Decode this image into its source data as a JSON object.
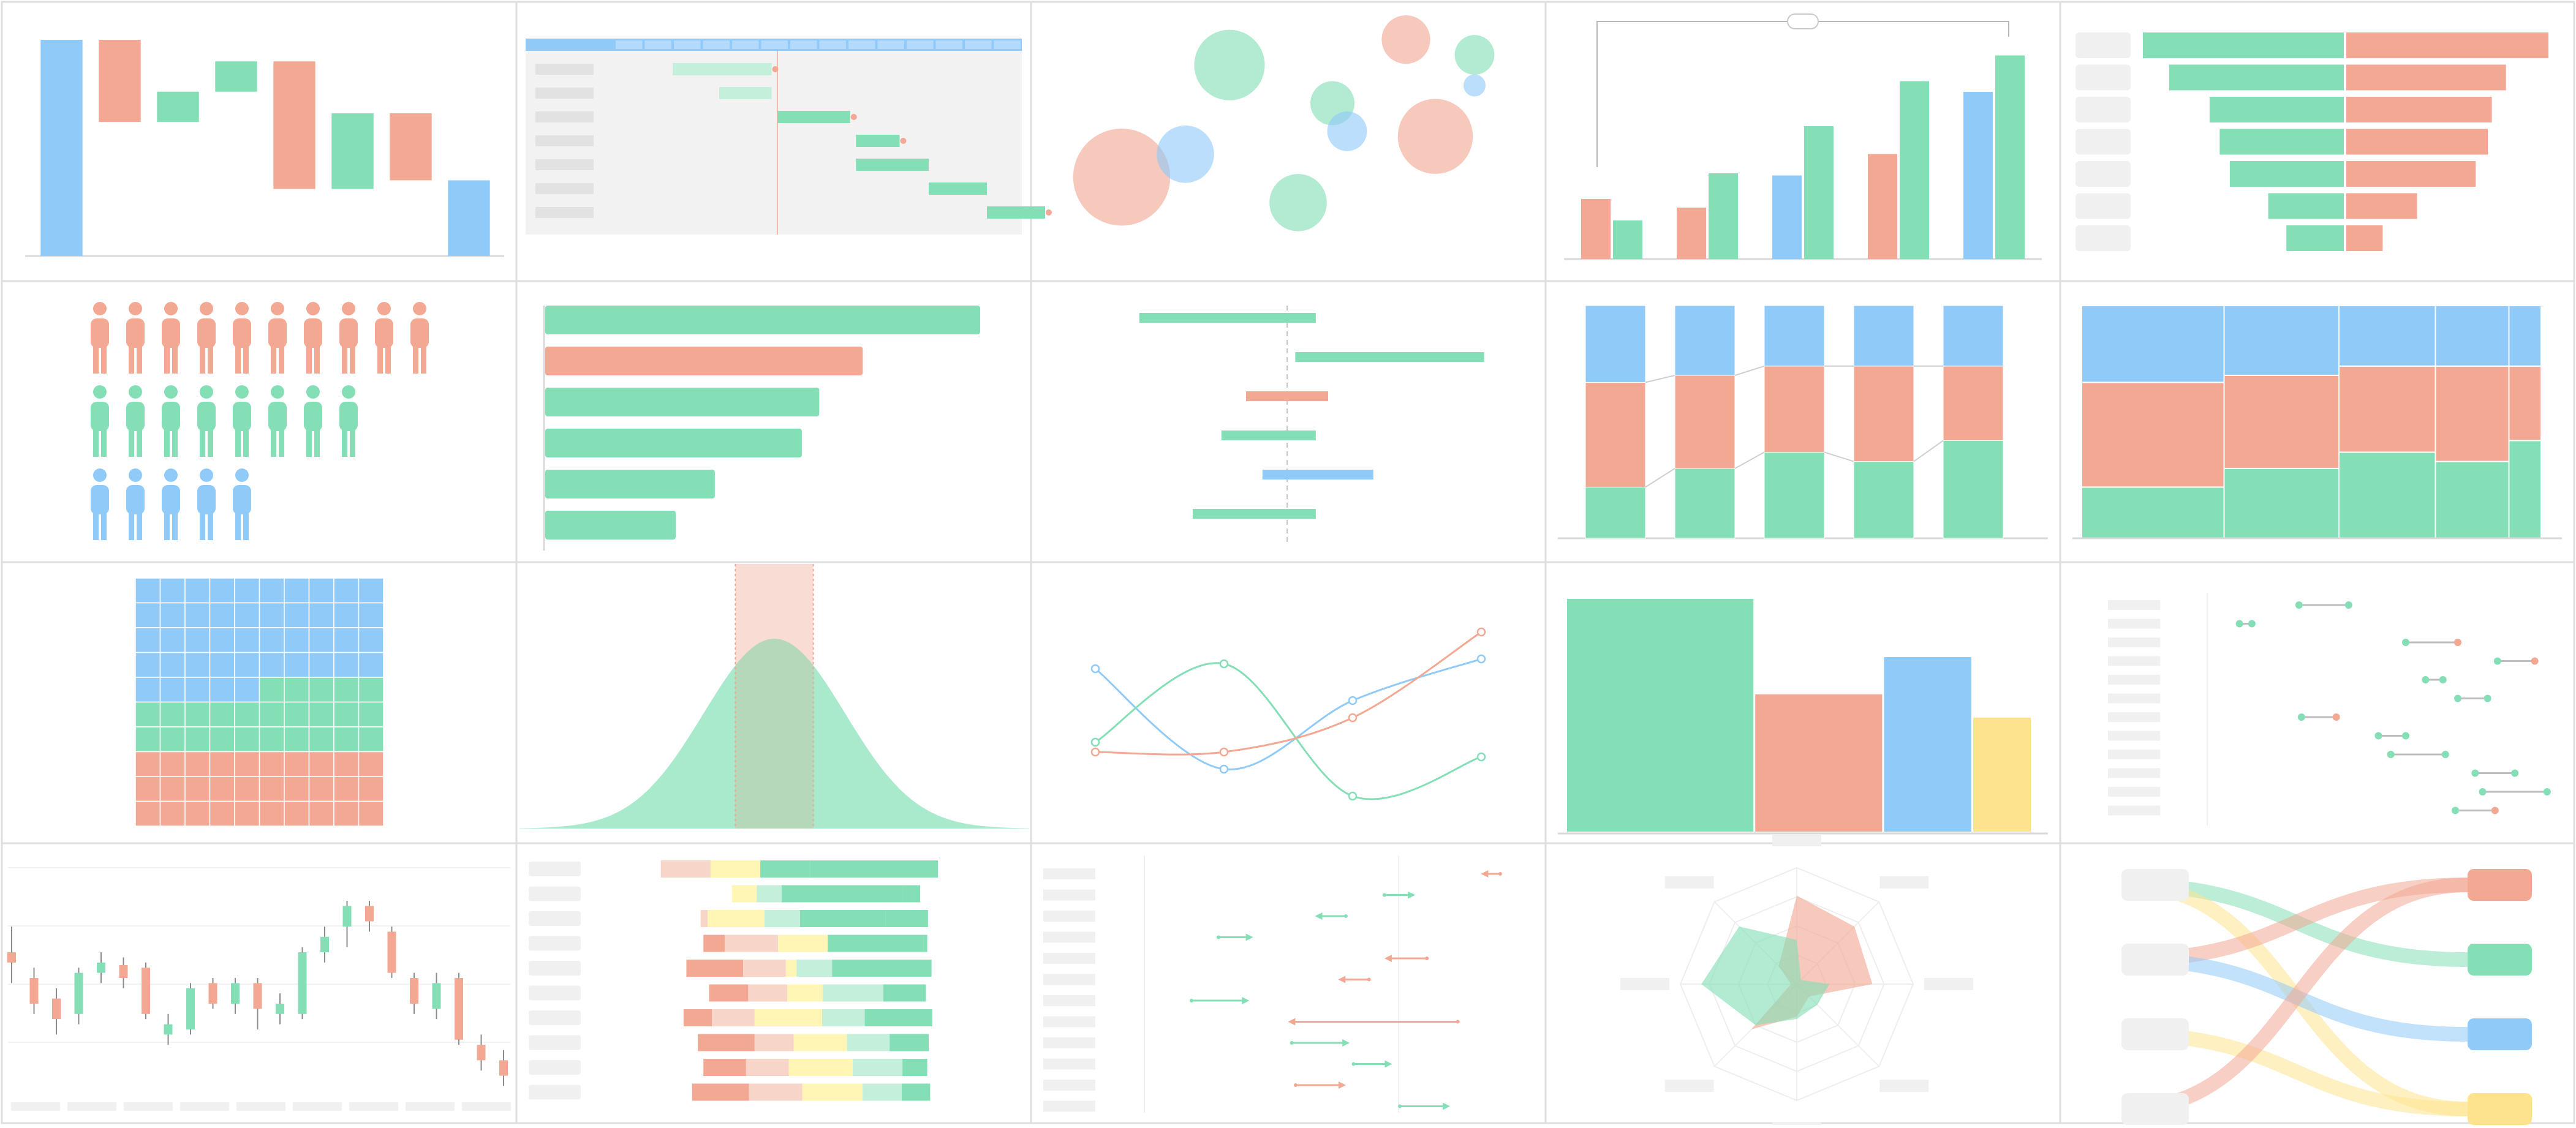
{
  "colors": {
    "blue": "#90caf9",
    "red": "#f2a893",
    "green": "#84dfb6",
    "yellow": "#fde38e",
    "grey": "#ececec",
    "panel_bg": "#ffffff",
    "panel_border": "#dedede",
    "axis": "#d9d9d9",
    "light_red": "#f7d5c9",
    "light_green": "#c3efdb",
    "light_yellow": "#fff6b6"
  },
  "chart_data": [
    {
      "type": "bar",
      "subtype": "waterfall",
      "grid_cell": [
        0,
        0
      ],
      "bars": [
        {
          "start": 0,
          "end": 100,
          "color": "blue"
        },
        {
          "start": 62,
          "end": 100,
          "color": "red"
        },
        {
          "start": 62,
          "end": 76,
          "color": "green"
        },
        {
          "start": 76,
          "end": 90,
          "color": "green"
        },
        {
          "start": 31,
          "end": 90,
          "color": "red"
        },
        {
          "start": 31,
          "end": 66,
          "color": "green"
        },
        {
          "start": 35,
          "end": 66,
          "color": "red"
        },
        {
          "start": 0,
          "end": 35,
          "color": "blue"
        }
      ]
    },
    {
      "type": "bar",
      "subtype": "gantt",
      "grid_cell": [
        0,
        1
      ],
      "columns": 14,
      "today": 5.6,
      "tasks": [
        {
          "start": 2.0,
          "end": 5.4,
          "status": "planned",
          "milestone": true
        },
        {
          "start": 3.6,
          "end": 5.4,
          "status": "planned",
          "milestone": false
        },
        {
          "start": 5.6,
          "end": 8.1,
          "status": "active",
          "milestone": true
        },
        {
          "start": 8.3,
          "end": 9.8,
          "status": "active",
          "milestone": true
        },
        {
          "start": 8.3,
          "end": 10.8,
          "status": "active",
          "milestone": false
        },
        {
          "start": 10.8,
          "end": 12.8,
          "status": "active",
          "milestone": false
        },
        {
          "start": 12.8,
          "end": 14.8,
          "status": "active",
          "milestone": true
        }
      ]
    },
    {
      "type": "scatter",
      "subtype": "bubble",
      "grid_cell": [
        0,
        2
      ],
      "points": [
        {
          "x": 0.16,
          "y": 0.36,
          "r": 0.22,
          "color": "red"
        },
        {
          "x": 0.29,
          "y": 0.45,
          "r": 0.13,
          "color": "blue"
        },
        {
          "x": 0.38,
          "y": 0.8,
          "r": 0.16,
          "color": "green"
        },
        {
          "x": 0.52,
          "y": 0.26,
          "r": 0.13,
          "color": "green"
        },
        {
          "x": 0.59,
          "y": 0.65,
          "r": 0.1,
          "color": "green"
        },
        {
          "x": 0.62,
          "y": 0.54,
          "r": 0.09,
          "color": "blue"
        },
        {
          "x": 0.74,
          "y": 0.9,
          "r": 0.11,
          "color": "red"
        },
        {
          "x": 0.8,
          "y": 0.52,
          "r": 0.17,
          "color": "red"
        },
        {
          "x": 0.88,
          "y": 0.84,
          "r": 0.09,
          "color": "green"
        },
        {
          "x": 0.88,
          "y": 0.72,
          "r": 0.05,
          "color": "blue"
        }
      ]
    },
    {
      "type": "bar",
      "subtype": "grouped-bar-with-annotation",
      "grid_cell": [
        0,
        3
      ],
      "groups": [
        {
          "a": 28,
          "a_color": "red",
          "b": 18,
          "b_color": "green"
        },
        {
          "a": 24,
          "a_color": "red",
          "b": 40,
          "b_color": "green"
        },
        {
          "a": 39,
          "a_color": "blue",
          "b": 62,
          "b_color": "green"
        },
        {
          "a": 49,
          "a_color": "red",
          "b": 83,
          "b_color": "green"
        },
        {
          "a": 78,
          "a_color": "blue",
          "b": 95,
          "b_color": "green"
        }
      ],
      "annotation": {
        "from_group": 0,
        "to_group": 4
      }
    },
    {
      "type": "bar",
      "subtype": "funnel-comparison",
      "grid_cell": [
        0,
        4
      ],
      "left": [
        100,
        87,
        67,
        62,
        57,
        38,
        29
      ],
      "right": [
        100,
        79,
        72,
        70,
        64,
        35,
        18
      ]
    },
    {
      "type": "other",
      "subtype": "pictogram",
      "grid_cell": [
        1,
        0
      ],
      "rows": [
        {
          "count": 10,
          "color": "red"
        },
        {
          "count": 8,
          "color": "green"
        },
        {
          "count": 5,
          "color": "blue"
        }
      ]
    },
    {
      "type": "bar",
      "subtype": "horizontal-bar",
      "grid_cell": [
        1,
        1
      ],
      "xlim": [
        0,
        100
      ],
      "bars": [
        {
          "value": 100,
          "color": "green"
        },
        {
          "value": 73,
          "color": "red"
        },
        {
          "value": 63,
          "color": "green"
        },
        {
          "value": 59,
          "color": "green"
        },
        {
          "value": 39,
          "color": "green"
        },
        {
          "value": 30,
          "color": "green"
        }
      ]
    },
    {
      "type": "bar",
      "subtype": "diverging-range",
      "grid_cell": [
        1,
        2
      ],
      "center": 0,
      "bars": [
        {
          "start": -36,
          "end": 7,
          "color": "green"
        },
        {
          "start": 2,
          "end": 48,
          "color": "green"
        },
        {
          "start": -10,
          "end": 10,
          "color": "red"
        },
        {
          "start": -16,
          "end": 7,
          "color": "green"
        },
        {
          "start": -6,
          "end": 21,
          "color": "blue"
        },
        {
          "start": -23,
          "end": 7,
          "color": "green"
        }
      ]
    },
    {
      "type": "bar",
      "subtype": "stacked-bar-100",
      "grid_cell": [
        1,
        3
      ],
      "series": [
        {
          "name": "",
          "color": "green",
          "values": [
            22,
            30,
            37,
            33,
            42
          ]
        },
        {
          "name": "",
          "color": "red",
          "values": [
            45,
            40,
            37,
            41,
            32
          ]
        },
        {
          "name": "",
          "color": "blue",
          "values": [
            33,
            30,
            26,
            26,
            26
          ]
        }
      ]
    },
    {
      "type": "bar",
      "subtype": "marimekko",
      "grid_cell": [
        1,
        4
      ],
      "widths": [
        31,
        25,
        21,
        16,
        7
      ],
      "series": [
        {
          "name": "",
          "color": "green",
          "values": [
            22,
            30,
            37,
            33,
            42
          ]
        },
        {
          "name": "",
          "color": "red",
          "values": [
            45,
            40,
            37,
            41,
            32
          ]
        },
        {
          "name": "",
          "color": "blue",
          "values": [
            33,
            30,
            26,
            26,
            26
          ]
        }
      ]
    },
    {
      "type": "other",
      "subtype": "waffle",
      "grid_cell": [
        2,
        0
      ],
      "rows": 10,
      "columns": 10,
      "cells": [
        {
          "count": 45,
          "color": "blue"
        },
        {
          "count": 25,
          "color": "green"
        },
        {
          "count": 30,
          "color": "red"
        }
      ]
    },
    {
      "type": "area",
      "subtype": "normal-distribution",
      "grid_cell": [
        2,
        1
      ],
      "mean": 0,
      "sd": 1,
      "xlim": [
        -3.6,
        3.6
      ],
      "highlight": [
        -0.55,
        0.55
      ]
    },
    {
      "type": "line",
      "subtype": "smooth-line",
      "grid_cell": [
        2,
        2
      ],
      "x": [
        0,
        1,
        2,
        3
      ],
      "series": [
        {
          "name": "",
          "color": "blue",
          "values": [
            64,
            23,
            51,
            68
          ]
        },
        {
          "name": "",
          "color": "green",
          "values": [
            34,
            66,
            12,
            28
          ]
        },
        {
          "name": "",
          "color": "red",
          "values": [
            30,
            30,
            44,
            79
          ]
        }
      ]
    },
    {
      "type": "bar",
      "subtype": "variable-width-bar",
      "grid_cell": [
        2,
        3
      ],
      "bars": [
        {
          "width": 38,
          "value": 100,
          "color": "green"
        },
        {
          "width": 26,
          "value": 59,
          "color": "red"
        },
        {
          "width": 18,
          "value": 75,
          "color": "blue"
        },
        {
          "width": 12,
          "value": 49,
          "color": "yellow"
        }
      ]
    },
    {
      "type": "scatter",
      "subtype": "dumbbell",
      "grid_cell": [
        2,
        4
      ],
      "xlim": [
        0,
        100
      ],
      "rows": [
        {
          "from": 37,
          "to": 57,
          "dir": "green"
        },
        {
          "from": 13,
          "to": 18,
          "dir": "green"
        },
        {
          "from": 80,
          "to": 101,
          "dir": "red"
        },
        {
          "from": 117,
          "to": 132,
          "dir": "red"
        },
        {
          "from": 88,
          "to": 95,
          "dir": "green"
        },
        {
          "from": 101,
          "to": 113,
          "dir": "green"
        },
        {
          "from": 38,
          "to": 52,
          "dir": "red"
        },
        {
          "from": 69,
          "to": 80,
          "dir": "green"
        },
        {
          "from": 74,
          "to": 96,
          "dir": "green"
        },
        {
          "from": 108,
          "to": 124,
          "dir": "green"
        },
        {
          "from": 111,
          "to": 137,
          "dir": "green"
        },
        {
          "from": 100,
          "to": 116,
          "dir": "red"
        }
      ]
    },
    {
      "type": "other",
      "subtype": "candlestick",
      "grid_cell": [
        3,
        0
      ],
      "candles": [
        {
          "o": 60,
          "c": 56,
          "h": 70,
          "l": 48
        },
        {
          "o": 50,
          "c": 40,
          "h": 54,
          "l": 36
        },
        {
          "o": 42,
          "c": 34,
          "h": 46,
          "l": 28
        },
        {
          "o": 36,
          "c": 52,
          "h": 54,
          "l": 32
        },
        {
          "o": 52,
          "c": 56,
          "h": 60,
          "l": 48
        },
        {
          "o": 55,
          "c": 50,
          "h": 58,
          "l": 46
        },
        {
          "o": 54,
          "c": 36,
          "h": 56,
          "l": 34
        },
        {
          "o": 28,
          "c": 32,
          "h": 36,
          "l": 24
        },
        {
          "o": 30,
          "c": 46,
          "h": 48,
          "l": 28
        },
        {
          "o": 48,
          "c": 40,
          "h": 50,
          "l": 38
        },
        {
          "o": 40,
          "c": 48,
          "h": 50,
          "l": 36
        },
        {
          "o": 48,
          "c": 38,
          "h": 50,
          "l": 30
        },
        {
          "o": 36,
          "c": 40,
          "h": 44,
          "l": 32
        },
        {
          "o": 36,
          "c": 60,
          "h": 62,
          "l": 34
        },
        {
          "o": 60,
          "c": 66,
          "h": 70,
          "l": 56
        },
        {
          "o": 70,
          "c": 78,
          "h": 80,
          "l": 62
        },
        {
          "o": 78,
          "c": 72,
          "h": 80,
          "l": 68
        },
        {
          "o": 68,
          "c": 52,
          "h": 70,
          "l": 50
        },
        {
          "o": 50,
          "c": 40,
          "h": 52,
          "l": 36
        },
        {
          "o": 38,
          "c": 48,
          "h": 52,
          "l": 34
        },
        {
          "o": 50,
          "c": 26,
          "h": 52,
          "l": 24
        },
        {
          "o": 24,
          "c": 18,
          "h": 28,
          "l": 14
        },
        {
          "o": 18,
          "c": 12,
          "h": 22,
          "l": 8
        }
      ]
    },
    {
      "type": "bar",
      "subtype": "diverging-likert",
      "grid_cell": [
        3,
        1
      ],
      "rows": [
        {
          "segments": [
            0,
            14,
            14,
            0,
            14,
            36
          ]
        },
        {
          "segments": [
            0,
            0,
            7,
            7,
            34,
            5
          ]
        },
        {
          "segments": [
            0,
            2,
            16,
            10,
            24,
            12
          ]
        },
        {
          "segments": [
            6,
            15,
            14,
            0,
            27,
            1
          ]
        },
        {
          "segments": [
            16,
            12,
            3,
            10,
            28,
            0
          ]
        },
        {
          "segments": [
            11,
            11,
            10,
            17,
            12,
            0
          ]
        },
        {
          "segments": [
            8,
            12,
            19,
            12,
            19,
            0
          ]
        },
        {
          "segments": [
            16,
            11,
            15,
            12,
            11,
            0
          ]
        },
        {
          "segments": [
            12,
            12,
            18,
            14,
            7,
            0
          ]
        },
        {
          "segments": [
            16,
            15,
            17,
            11,
            8,
            0
          ]
        }
      ],
      "segment_colors": [
        "red",
        "light_red",
        "light_yellow",
        "light_green",
        "green",
        "green"
      ]
    },
    {
      "type": "scatter",
      "subtype": "arrow-change",
      "grid_cell": [
        3,
        2
      ],
      "xlim": [
        0,
        100
      ],
      "rows": [
        {
          "from": 93,
          "to": 88,
          "color": "red"
        },
        {
          "from": 63,
          "to": 71,
          "color": "green"
        },
        {
          "from": 53,
          "to": 45,
          "color": "green"
        },
        {
          "from": 20,
          "to": 29,
          "color": "green"
        },
        {
          "from": 74,
          "to": 63,
          "color": "red"
        },
        {
          "from": 59,
          "to": 51,
          "color": "red"
        },
        {
          "from": 13,
          "to": 28,
          "color": "green"
        },
        {
          "from": 82,
          "to": 38,
          "color": "red"
        },
        {
          "from": 39,
          "to": 54,
          "color": "green"
        },
        {
          "from": 55,
          "to": 65,
          "color": "green"
        },
        {
          "from": 40,
          "to": 53,
          "color": "red"
        },
        {
          "from": 67,
          "to": 80,
          "color": "green"
        }
      ]
    },
    {
      "type": "other",
      "subtype": "radar",
      "grid_cell": [
        3,
        3
      ],
      "axes": 8,
      "max": 100,
      "series": [
        {
          "name": "",
          "color": "red",
          "values": [
            76,
            70,
            65,
            15,
            28,
            55,
            5,
            22
          ]
        },
        {
          "name": "",
          "color": "green",
          "values": [
            38,
            5,
            28,
            25,
            30,
            50,
            82,
            70
          ]
        }
      ]
    },
    {
      "type": "other",
      "subtype": "sankey",
      "grid_cell": [
        3,
        4
      ],
      "sources": 4,
      "targets": [
        "red",
        "green",
        "blue",
        "yellow"
      ],
      "flows": [
        {
          "from": 0,
          "to": 1,
          "value": 1,
          "color": "green"
        },
        {
          "from": 0,
          "to": 3,
          "value": 1,
          "color": "yellow"
        },
        {
          "from": 1,
          "to": 0,
          "value": 1,
          "color": "red"
        },
        {
          "from": 1,
          "to": 2,
          "value": 1,
          "color": "blue"
        },
        {
          "from": 2,
          "to": 3,
          "value": 1,
          "color": "yellow"
        },
        {
          "from": 3,
          "to": 0,
          "value": 1,
          "color": "red"
        }
      ]
    }
  ]
}
